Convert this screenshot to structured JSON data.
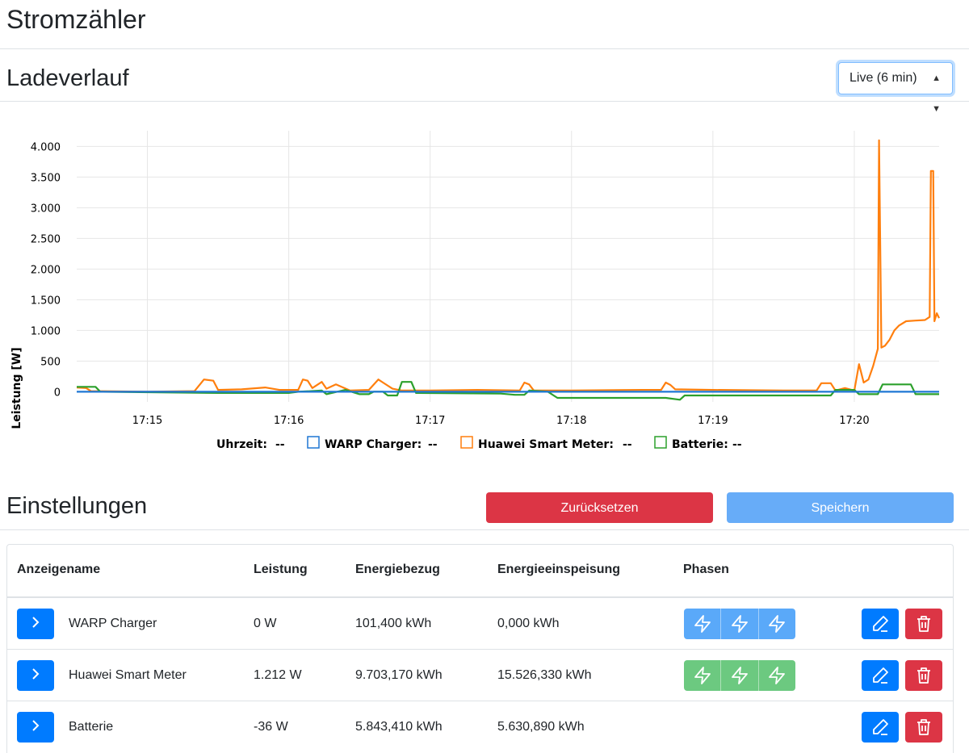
{
  "page": {
    "title": "Stromzähler"
  },
  "chart_section": {
    "title": "Ladeverlauf",
    "range_select": {
      "selected": "Live (6 min)"
    }
  },
  "colors": {
    "warp": "#1f77d4",
    "huawei": "#ff7f0e",
    "batterie": "#2ca02c",
    "primary": "#007bff",
    "danger": "#dc3545",
    "phase_blue": "#5aa9f9",
    "phase_green": "#6cc980"
  },
  "chart_data": {
    "type": "line",
    "ylabel": "Leistung [W]",
    "xlabel": "",
    "ylim": [
      -100,
      4150
    ],
    "y_ticks": [
      0,
      500,
      1000,
      1500,
      2000,
      2500,
      3000,
      3500,
      4000
    ],
    "y_tick_labels": [
      "0",
      "500",
      "1.000",
      "1.500",
      "2.000",
      "2.500",
      "3.000",
      "3.500",
      "4.000"
    ],
    "x_range": [
      "17:14:30",
      "17:20:36"
    ],
    "x_ticks": [
      "17:15",
      "17:16",
      "17:17",
      "17:18",
      "17:19",
      "17:20"
    ],
    "grid": true,
    "legend_position": "bottom",
    "legend": {
      "time_label": "Uhrzeit:",
      "time_value": "--",
      "items": [
        {
          "name": "WARP Charger:",
          "value": "--"
        },
        {
          "name": "Huawei Smart Meter:",
          "value": "--"
        },
        {
          "name": "Batterie:",
          "value": "--"
        }
      ]
    },
    "series": [
      {
        "name": "WARP Charger",
        "color": "#1f77d4",
        "points": [
          [
            "17:14:30",
            0
          ],
          [
            "17:20:36",
            0
          ]
        ]
      },
      {
        "name": "Huawei Smart Meter",
        "color": "#ff7f0e",
        "points": [
          [
            "17:14:30",
            70
          ],
          [
            "17:14:34",
            60
          ],
          [
            "17:14:36",
            10
          ],
          [
            "17:15:00",
            0
          ],
          [
            "17:15:20",
            10
          ],
          [
            "17:15:24",
            200
          ],
          [
            "17:15:28",
            180
          ],
          [
            "17:15:30",
            30
          ],
          [
            "17:15:40",
            40
          ],
          [
            "17:15:50",
            70
          ],
          [
            "17:15:56",
            30
          ],
          [
            "17:16:04",
            30
          ],
          [
            "17:16:06",
            200
          ],
          [
            "17:16:08",
            180
          ],
          [
            "17:16:10",
            60
          ],
          [
            "17:16:14",
            160
          ],
          [
            "17:16:16",
            50
          ],
          [
            "17:16:20",
            120
          ],
          [
            "17:16:26",
            20
          ],
          [
            "17:16:34",
            30
          ],
          [
            "17:16:38",
            200
          ],
          [
            "17:16:40",
            150
          ],
          [
            "17:16:44",
            50
          ],
          [
            "17:16:48",
            20
          ],
          [
            "17:17:00",
            20
          ],
          [
            "17:17:20",
            30
          ],
          [
            "17:17:38",
            20
          ],
          [
            "17:17:40",
            150
          ],
          [
            "17:17:42",
            120
          ],
          [
            "17:17:44",
            20
          ],
          [
            "17:18:00",
            20
          ],
          [
            "17:18:30",
            30
          ],
          [
            "17:18:38",
            30
          ],
          [
            "17:18:40",
            150
          ],
          [
            "17:18:42",
            110
          ],
          [
            "17:18:44",
            40
          ],
          [
            "17:19:00",
            30
          ],
          [
            "17:19:30",
            20
          ],
          [
            "17:19:44",
            20
          ],
          [
            "17:19:46",
            140
          ],
          [
            "17:19:50",
            140
          ],
          [
            "17:19:52",
            20
          ],
          [
            "17:19:56",
            60
          ],
          [
            "17:20:00",
            20
          ],
          [
            "17:20:02",
            450
          ],
          [
            "17:20:04",
            150
          ],
          [
            "17:20:06",
            200
          ],
          [
            "17:20:08",
            420
          ],
          [
            "17:20:10",
            700
          ],
          [
            "17:20:10.5",
            4100
          ],
          [
            "17:20:11.5",
            720
          ],
          [
            "17:20:13",
            750
          ],
          [
            "17:20:15",
            850
          ],
          [
            "17:20:17",
            1000
          ],
          [
            "17:20:19",
            1080
          ],
          [
            "17:20:22",
            1150
          ],
          [
            "17:20:26",
            1160
          ],
          [
            "17:20:30",
            1170
          ],
          [
            "17:20:32",
            1220
          ],
          [
            "17:20:32.5",
            3600
          ],
          [
            "17:20:33.5",
            3600
          ],
          [
            "17:20:34",
            1150
          ],
          [
            "17:20:35",
            1280
          ],
          [
            "17:20:36",
            1200
          ]
        ]
      },
      {
        "name": "Batterie",
        "color": "#2ca02c",
        "points": [
          [
            "17:14:30",
            80
          ],
          [
            "17:14:38",
            80
          ],
          [
            "17:14:40",
            0
          ],
          [
            "17:15:30",
            -20
          ],
          [
            "17:16:00",
            -20
          ],
          [
            "17:16:04",
            0
          ],
          [
            "17:16:14",
            20
          ],
          [
            "17:16:16",
            -40
          ],
          [
            "17:16:24",
            30
          ],
          [
            "17:16:30",
            -40
          ],
          [
            "17:16:34",
            -40
          ],
          [
            "17:16:36",
            0
          ],
          [
            "17:16:40",
            0
          ],
          [
            "17:16:42",
            -60
          ],
          [
            "17:16:46",
            -60
          ],
          [
            "17:16:48",
            160
          ],
          [
            "17:16:52",
            160
          ],
          [
            "17:16:54",
            -20
          ],
          [
            "17:17:30",
            -30
          ],
          [
            "17:17:36",
            -50
          ],
          [
            "17:17:40",
            -50
          ],
          [
            "17:17:42",
            20
          ],
          [
            "17:17:50",
            0
          ],
          [
            "17:17:54",
            -100
          ],
          [
            "17:18:40",
            -100
          ],
          [
            "17:18:46",
            -130
          ],
          [
            "17:18:48",
            -60
          ],
          [
            "17:19:30",
            -60
          ],
          [
            "17:19:50",
            -60
          ],
          [
            "17:19:52",
            30
          ],
          [
            "17:20:00",
            30
          ],
          [
            "17:20:02",
            -40
          ],
          [
            "17:20:10",
            -40
          ],
          [
            "17:20:12",
            120
          ],
          [
            "17:20:24",
            120
          ],
          [
            "17:20:26",
            -40
          ],
          [
            "17:20:36",
            -40
          ]
        ]
      }
    ]
  },
  "settings": {
    "title": "Einstellungen",
    "reset_label": "Zurücksetzen",
    "save_label": "Speichern"
  },
  "table": {
    "headers": [
      "Anzeigename",
      "Leistung",
      "Energiebezug",
      "Energieeinspeisung",
      "Phasen"
    ],
    "rows": [
      {
        "name": "WARP Charger",
        "power": "0 W",
        "import": "101,400 kWh",
        "export": "0,000 kWh",
        "phases": "blue",
        "expand_icon": "chevron-right-icon"
      },
      {
        "name": "Huawei Smart Meter",
        "power": "1.212 W",
        "import": "9.703,170 kWh",
        "export": "15.526,330 kWh",
        "phases": "green",
        "expand_icon": "chevron-right-icon"
      },
      {
        "name": "Batterie",
        "power": "-36 W",
        "import": "5.843,410 kWh",
        "export": "5.630,890 kWh",
        "phases": "none",
        "expand_icon": "chevron-right-icon"
      }
    ]
  },
  "icons": [
    "chevron-right-icon",
    "lightning-icon",
    "pencil-icon",
    "trash-icon",
    "select-caret-icon"
  ]
}
